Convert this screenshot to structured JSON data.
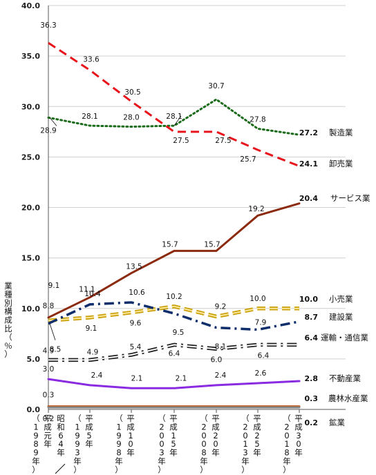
{
  "chart_data": {
    "type": "line",
    "title": "",
    "ylabel": "業種別構成比（％）",
    "ylim": [
      0,
      40
    ],
    "yticks": [
      "0.0",
      "5.0",
      "10.0",
      "15.0",
      "20.0",
      "25.0",
      "30.0",
      "35.0",
      "40.0"
    ],
    "grid": true,
    "categories": [
      "（1989年）平成元年／昭和64年",
      "（1993年）平成5年",
      "（1998年）平成10年",
      "（2003年）平成15年",
      "（2008年）平成20年",
      "（2013年）平成25年",
      "（2018年）平成30年"
    ],
    "category_labels": [
      {
        "year": "（1989年）",
        "era": "平成元年",
        "alt": "昭和64年"
      },
      {
        "year": "（1993年）",
        "era": "平成5年"
      },
      {
        "year": "（1998年）",
        "era": "平成10年"
      },
      {
        "year": "（2003年）",
        "era": "平成15年"
      },
      {
        "year": "（2008年）",
        "era": "平成20年"
      },
      {
        "year": "（2013年）",
        "era": "平成25年"
      },
      {
        "year": "（2018年）",
        "era": "平成30年"
      }
    ],
    "series": [
      {
        "name": "製造業",
        "values": [
          28.9,
          28.1,
          28.0,
          28.1,
          30.7,
          27.8,
          27.2
        ],
        "color": "#1a6b1a",
        "style": "dotted",
        "end_label": "27.2"
      },
      {
        "name": "卸売業",
        "values": [
          36.3,
          33.6,
          30.5,
          27.5,
          27.5,
          25.7,
          24.1
        ],
        "color": "#e8141c",
        "style": "dashed",
        "end_label": "24.1"
      },
      {
        "name": "サービス業",
        "values": [
          9.1,
          11.1,
          13.5,
          15.7,
          15.7,
          19.2,
          20.4
        ],
        "color": "#8b2a0e",
        "style": "solid",
        "end_label": "20.4"
      },
      {
        "name": "小売業",
        "values": [
          8.8,
          9.1,
          9.6,
          10.2,
          9.2,
          10.0,
          10.0
        ],
        "color": "#f0c419",
        "style": "double-dashed",
        "end_label": "10.0"
      },
      {
        "name": "建設業",
        "values": [
          8.5,
          10.4,
          10.6,
          9.5,
          8.1,
          7.9,
          8.7
        ],
        "color": "#0d2d6b",
        "style": "dash-dot",
        "end_label": "8.7"
      },
      {
        "name": "運輸・通信業",
        "values": [
          4.9,
          4.9,
          5.4,
          6.4,
          6.0,
          6.4,
          6.4
        ],
        "color": "#333333",
        "style": "outlined-dash-dot",
        "end_label": "6.4"
      },
      {
        "name": "不動産業",
        "values": [
          3.0,
          2.4,
          2.1,
          2.1,
          2.4,
          2.6,
          2.8
        ],
        "color": "#8a2be2",
        "style": "solid",
        "end_label": "2.8"
      },
      {
        "name": "農林水産業",
        "values": [
          0.3,
          0.3,
          0.3,
          0.3,
          0.3,
          0.3,
          0.3
        ],
        "color": "#c0581e",
        "style": "solid",
        "end_label": "0.3"
      },
      {
        "name": "鉱業",
        "values": [
          0.2,
          0.2,
          0.2,
          0.2,
          0.2,
          0.2,
          0.2
        ],
        "color": "#888888",
        "style": "solid",
        "end_label": "0.2"
      }
    ]
  }
}
